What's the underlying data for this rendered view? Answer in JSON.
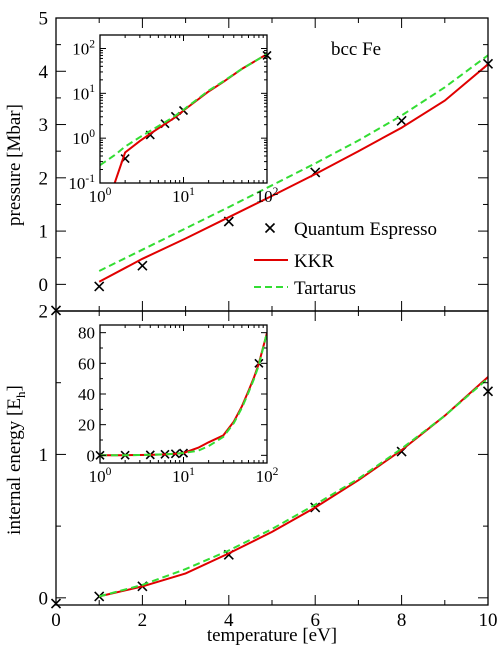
{
  "colors": {
    "qe": "#000000",
    "kkr": "#e00000",
    "tartarus": "#33dd33",
    "frame": "#000000",
    "background": "#ffffff"
  },
  "chart_data": [
    {
      "id": "top-main",
      "type": "line",
      "annotation": "bcc Fe",
      "xlabel": "",
      "ylabel": "pressure [Mbar]",
      "xlim": [
        0,
        10
      ],
      "ylim": [
        -0.5,
        5
      ],
      "x_ticks": [
        0,
        2,
        4,
        6,
        8,
        10
      ],
      "y_ticks": [
        0,
        1,
        2,
        3,
        4,
        5
      ],
      "y_tick_labels": [
        "0",
        "1",
        "2",
        "3",
        "4",
        "5"
      ],
      "legend": {
        "placement": "center-right",
        "entries": [
          "Quantum Espresso",
          "KKR",
          "Tartarus"
        ]
      },
      "series": [
        {
          "name": "Quantum Espresso",
          "style": "marker-x",
          "x": [
            0,
            1,
            2,
            4,
            6,
            8,
            10
          ],
          "y": [
            -0.49,
            -0.04,
            0.35,
            1.18,
            2.1,
            3.07,
            4.14
          ]
        },
        {
          "name": "KKR",
          "style": "solid",
          "x": [
            1,
            2,
            3,
            4,
            5,
            6,
            7,
            8,
            9,
            10
          ],
          "y": [
            0.05,
            0.48,
            0.86,
            1.26,
            1.66,
            2.07,
            2.5,
            2.94,
            3.45,
            4.13
          ]
        },
        {
          "name": "Tartarus",
          "style": "dashed",
          "x": [
            1,
            2,
            3,
            4,
            5,
            6,
            7,
            8,
            9,
            10
          ],
          "y": [
            0.25,
            0.65,
            1.05,
            1.45,
            1.86,
            2.27,
            2.7,
            3.17,
            3.7,
            4.3
          ]
        }
      ]
    },
    {
      "id": "top-inset",
      "type": "line",
      "xscale": "log",
      "yscale": "log",
      "xlim": [
        1,
        100
      ],
      "ylim": [
        0.1,
        200
      ],
      "x_ticks": [
        1,
        10,
        100
      ],
      "x_tick_labels": [
        [
          "10",
          "0"
        ],
        [
          "10",
          "1"
        ],
        [
          "10",
          "2"
        ]
      ],
      "y_ticks": [
        0.1,
        1,
        10,
        100
      ],
      "y_tick_labels": [
        [
          "10",
          "-1"
        ],
        [
          "10",
          "0"
        ],
        [
          "10",
          "1"
        ],
        [
          "10",
          "2"
        ]
      ],
      "series": [
        {
          "name": "Quantum Espresso",
          "style": "marker-x",
          "x": [
            2,
            4,
            6,
            8,
            10,
            100
          ],
          "y": [
            0.35,
            1.18,
            2.1,
            3.07,
            4.14,
            70
          ]
        },
        {
          "name": "KKR",
          "style": "solid",
          "x": [
            1.5,
            2,
            3,
            4,
            6,
            8,
            10,
            20,
            30,
            50,
            100
          ],
          "y": [
            0.1,
            0.48,
            0.86,
            1.26,
            2.07,
            2.94,
            4.13,
            11,
            18,
            35,
            75
          ]
        },
        {
          "name": "Tartarus",
          "style": "dashed",
          "x": [
            1,
            1.5,
            2,
            3,
            4,
            6,
            8,
            10,
            20,
            30,
            50,
            100
          ],
          "y": [
            0.25,
            0.42,
            0.65,
            1.05,
            1.45,
            2.27,
            3.17,
            4.3,
            11.5,
            18.5,
            35,
            75
          ]
        }
      ]
    },
    {
      "id": "bottom-main",
      "type": "line",
      "xlabel": "temperature [eV]",
      "ylabel": "internal energy [E",
      "ylabel_sub": "h",
      "ylabel_end": "]",
      "xlim": [
        0,
        10
      ],
      "ylim": [
        -0.05,
        2
      ],
      "x_ticks": [
        0,
        2,
        4,
        6,
        8,
        10
      ],
      "x_tick_labels": [
        "0",
        "2",
        "4",
        "6",
        "8",
        "10"
      ],
      "y_ticks": [
        0,
        1,
        2
      ],
      "y_tick_labels": [
        "0",
        "1",
        "2"
      ],
      "series": [
        {
          "name": "Quantum Espresso",
          "style": "marker-x",
          "x": [
            0,
            1,
            2,
            4,
            6,
            8,
            10
          ],
          "y": [
            -0.04,
            0.01,
            0.08,
            0.3,
            0.63,
            1.02,
            1.44
          ]
        },
        {
          "name": "KKR",
          "style": "solid",
          "x": [
            1,
            2,
            3,
            4,
            5,
            6,
            7,
            8,
            9,
            10
          ],
          "y": [
            0.01,
            0.08,
            0.17,
            0.31,
            0.46,
            0.63,
            0.82,
            1.03,
            1.27,
            1.54
          ]
        },
        {
          "name": "Tartarus",
          "style": "dashed",
          "x": [
            1,
            2,
            3,
            4,
            5,
            6,
            7,
            8,
            9,
            10
          ],
          "y": [
            0.01,
            0.09,
            0.2,
            0.33,
            0.48,
            0.65,
            0.83,
            1.04,
            1.27,
            1.53
          ]
        }
      ]
    },
    {
      "id": "bottom-inset",
      "type": "line",
      "xscale": "log",
      "xlim": [
        1,
        100
      ],
      "ylim": [
        -5,
        85
      ],
      "x_ticks": [
        1,
        10,
        100
      ],
      "x_tick_labels": [
        [
          "10",
          "0"
        ],
        [
          "10",
          "1"
        ],
        [
          "10",
          "2"
        ]
      ],
      "y_ticks": [
        0,
        20,
        40,
        60,
        80
      ],
      "y_tick_labels": [
        "0",
        "20",
        "40",
        "60",
        "80"
      ],
      "series": [
        {
          "name": "Quantum Espresso",
          "style": "marker-x",
          "x": [
            1,
            2,
            4,
            6,
            8,
            10,
            80
          ],
          "y": [
            0.01,
            0.08,
            0.3,
            0.63,
            1.02,
            1.44,
            60
          ]
        },
        {
          "name": "KKR",
          "style": "solid",
          "x": [
            1,
            2,
            4,
            6,
            8,
            10,
            15,
            20,
            30,
            40,
            50,
            60,
            70,
            80,
            100
          ],
          "y": [
            0.01,
            0.08,
            0.3,
            0.63,
            1.02,
            1.54,
            5,
            8.5,
            13,
            22,
            32,
            42,
            51,
            60,
            80
          ]
        },
        {
          "name": "Tartarus",
          "style": "dashed",
          "x": [
            1,
            2,
            4,
            6,
            8,
            10,
            15,
            20,
            30,
            40,
            50,
            60,
            70,
            80,
            100
          ],
          "y": [
            0.01,
            0.09,
            0.33,
            0.65,
            1.04,
            1.53,
            3,
            6,
            12,
            21,
            31,
            41,
            50,
            59,
            80
          ]
        }
      ]
    }
  ]
}
